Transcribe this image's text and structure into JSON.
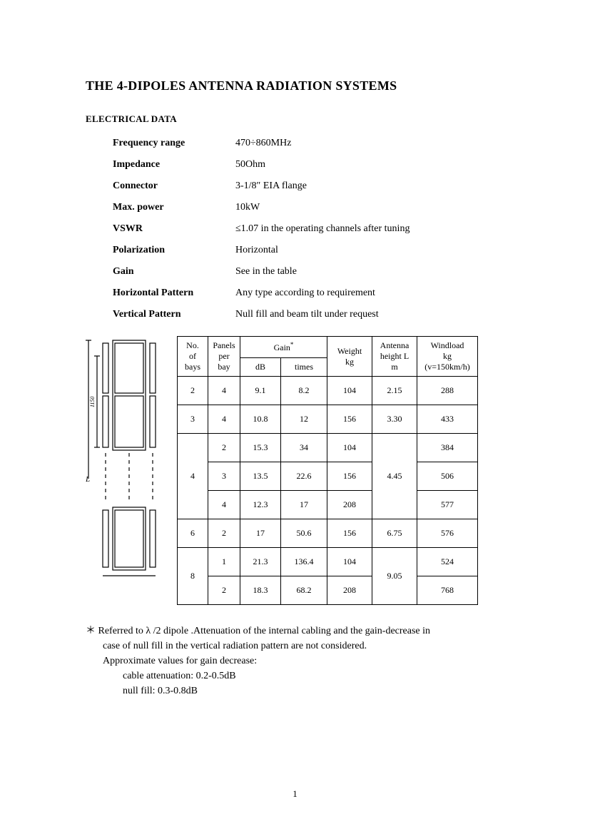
{
  "title": "THE 4-DIPOLES ANTENNA RADIATION SYSTEMS",
  "section": "ELECTRICAL DATA",
  "specs": [
    {
      "label": "Frequency range",
      "value": "470÷860MHz"
    },
    {
      "label": "Impedance",
      "value": "50Ohm"
    },
    {
      "label": "Connector",
      "value": "3-1/8″  EIA    flange"
    },
    {
      "label": "Max. power",
      "value": "10kW"
    },
    {
      "label": "VSWR",
      "value": "≤1.07 in the operating channels after tuning"
    },
    {
      "label": "Polarization",
      "value": "Horizontal"
    },
    {
      "label": "Gain",
      "value": "See in the table"
    },
    {
      "label": "Horizontal Pattern",
      "value": "Any type according to requirement"
    },
    {
      "label": "Vertical Pattern",
      "value": "Null fill and beam tilt under request"
    }
  ],
  "table": {
    "headers": {
      "bays_l1": "No.",
      "bays_l2": "of",
      "bays_l3": "bays",
      "panels_l1": "Panels",
      "panels_l2": "per",
      "panels_l3": "bay",
      "gain": "Gain",
      "gain_db": "dB",
      "gain_times": "times",
      "weight_l1": "Weight",
      "weight_l2": "kg",
      "height_l1": "Antenna",
      "height_l2": "height L",
      "height_l3": "m",
      "wind_l1": "Windload",
      "wind_l2": "kg",
      "wind_l3": "(v=150km/h)"
    },
    "rows": [
      {
        "bays": "2",
        "bays_rowspan": 1,
        "panels": "4",
        "db": "9.1",
        "times": "8.2",
        "weight": "104",
        "height": "2.15",
        "height_rowspan": 1,
        "wind": "288"
      },
      {
        "bays": "3",
        "bays_rowspan": 1,
        "panels": "4",
        "db": "10.8",
        "times": "12",
        "weight": "156",
        "height": "3.30",
        "height_rowspan": 1,
        "wind": "433"
      },
      {
        "bays": "4",
        "bays_rowspan": 3,
        "panels": "2",
        "db": "15.3",
        "times": "34",
        "weight": "104",
        "height": "4.45",
        "height_rowspan": 3,
        "wind": "384"
      },
      {
        "bays": null,
        "panels": "3",
        "db": "13.5",
        "times": "22.6",
        "weight": "156",
        "height": null,
        "wind": "506"
      },
      {
        "bays": null,
        "panels": "4",
        "db": "12.3",
        "times": "17",
        "weight": "208",
        "height": null,
        "wind": "577"
      },
      {
        "bays": "6",
        "bays_rowspan": 1,
        "panels": "2",
        "db": "17",
        "times": "50.6",
        "weight": "156",
        "height": "6.75",
        "height_rowspan": 1,
        "wind": "576"
      },
      {
        "bays": "8",
        "bays_rowspan": 2,
        "panels": "1",
        "db": "21.3",
        "times": "136.4",
        "weight": "104",
        "height": "9.05",
        "height_rowspan": 2,
        "wind": "524"
      },
      {
        "bays": null,
        "panels": "2",
        "db": "18.3",
        "times": "68.2",
        "weight": "208",
        "height": null,
        "wind": "768"
      }
    ]
  },
  "footnote": {
    "star": "＊",
    "line1a": "Referred to ",
    "lambda": "λ",
    "line1b": "/2 dipole .Attenuation of the internal cabling and the gain-decrease in",
    "line2": "case of null fill in the vertical radiation pattern are not considered.",
    "line3": "Approximate values for gain decrease:",
    "line4": "cable attenuation: 0.2-0.5dB",
    "line5": "null fill: 0.3-0.8dB"
  },
  "diagram": {
    "dim_label": "1150"
  },
  "pagenum": "1"
}
